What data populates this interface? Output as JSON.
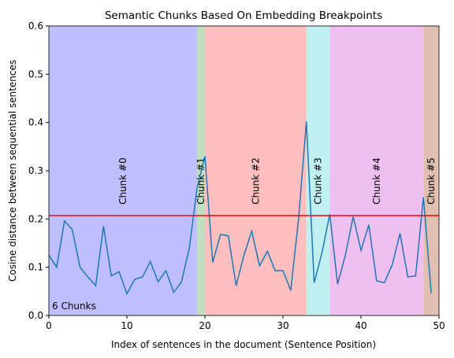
{
  "chart_data": {
    "type": "line",
    "title": "Semantic Chunks Based On Embedding Breakpoints",
    "xlabel": "Index of sentences in the document (Sentence Position)",
    "ylabel": "Cosine distance between sequential sentences",
    "annotation": "6 Chunks",
    "x": [
      0,
      1,
      2,
      3,
      4,
      5,
      6,
      7,
      8,
      9,
      10,
      11,
      12,
      13,
      14,
      15,
      16,
      17,
      18,
      19,
      20,
      21,
      22,
      23,
      24,
      25,
      26,
      27,
      28,
      29,
      30,
      31,
      32,
      33,
      34,
      35,
      36,
      37,
      38,
      39,
      40,
      41,
      42,
      43,
      44,
      45,
      46,
      47,
      48,
      49
    ],
    "series": [
      {
        "color": "#1f77b4",
        "values": [
          0.125,
          0.1,
          0.196,
          0.178,
          0.1,
          0.08,
          0.062,
          0.185,
          0.082,
          0.091,
          0.045,
          0.075,
          0.08,
          0.112,
          0.07,
          0.093,
          0.048,
          0.07,
          0.14,
          0.265,
          0.33,
          0.11,
          0.168,
          0.165,
          0.062,
          0.125,
          0.175,
          0.103,
          0.133,
          0.093,
          0.093,
          0.052,
          0.2,
          0.402,
          0.068,
          0.13,
          0.21,
          0.065,
          0.125,
          0.205,
          0.135,
          0.188,
          0.072,
          0.068,
          0.105,
          0.17,
          0.08,
          0.082,
          0.245,
          0.046
        ]
      }
    ],
    "threshold": {
      "value": 0.207,
      "color": "#ff0000"
    },
    "chunks": [
      {
        "label": "Chunk #0",
        "start": 0,
        "end": 19,
        "color": "#bfbfff"
      },
      {
        "label": "Chunk #1",
        "start": 19,
        "end": 20,
        "color": "#bfdfbf"
      },
      {
        "label": "Chunk #2",
        "start": 20,
        "end": 33,
        "color": "#ffbfbf"
      },
      {
        "label": "Chunk #3",
        "start": 33,
        "end": 36,
        "color": "#bfefef"
      },
      {
        "label": "Chunk #4",
        "start": 36,
        "end": 48,
        "color": "#efbfef"
      },
      {
        "label": "Chunk #5",
        "start": 48,
        "end": 50,
        "color": "#dfbfb0"
      }
    ],
    "xlim": [
      0,
      50
    ],
    "ylim": [
      0,
      0.6
    ],
    "xticks": [
      0,
      10,
      20,
      30,
      40,
      50
    ],
    "yticks": [
      {
        "value": 0,
        "label": "0.0"
      },
      0.1,
      0.2,
      0.3,
      0.4,
      0.5,
      0.6
    ]
  }
}
